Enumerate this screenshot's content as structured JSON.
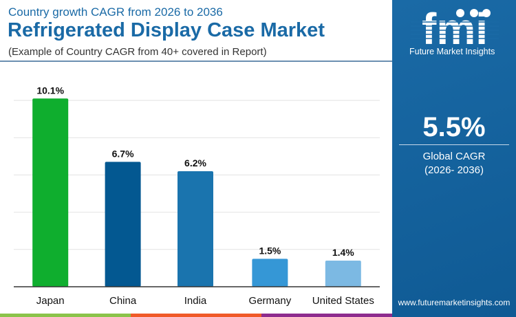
{
  "header": {
    "subtitle": "Country growth CAGR from 2026 to 2036",
    "title": "Refrigerated Display Case Market",
    "note": "(Example of Country CAGR from 40+ covered in Report)"
  },
  "panel": {
    "brand": "Future Market Insights",
    "logo_text": "fmi",
    "cagr_value": "5.5%",
    "cagr_label": "Global CAGR",
    "cagr_period": "(2026- 2036)",
    "url": "www.futuremarketinsights.com",
    "background": "#1a6aa6"
  },
  "stripe_colors": [
    "#8bc34a",
    "#f05a28",
    "#8e2c8e"
  ],
  "chart_data": {
    "type": "bar",
    "categories": [
      "Japan",
      "China",
      "India",
      "Germany",
      "United States"
    ],
    "values": [
      10.1,
      6.7,
      6.2,
      1.5,
      1.4
    ],
    "labels": [
      "10.1%",
      "6.7%",
      "6.2%",
      "1.5%",
      "1.4%"
    ],
    "colors": [
      "#0fae2e",
      "#035891",
      "#1a74ae",
      "#3597d6",
      "#7cb9e3"
    ],
    "ylim": [
      0,
      10
    ],
    "grid": true,
    "title": "",
    "xlabel": "",
    "ylabel": ""
  }
}
